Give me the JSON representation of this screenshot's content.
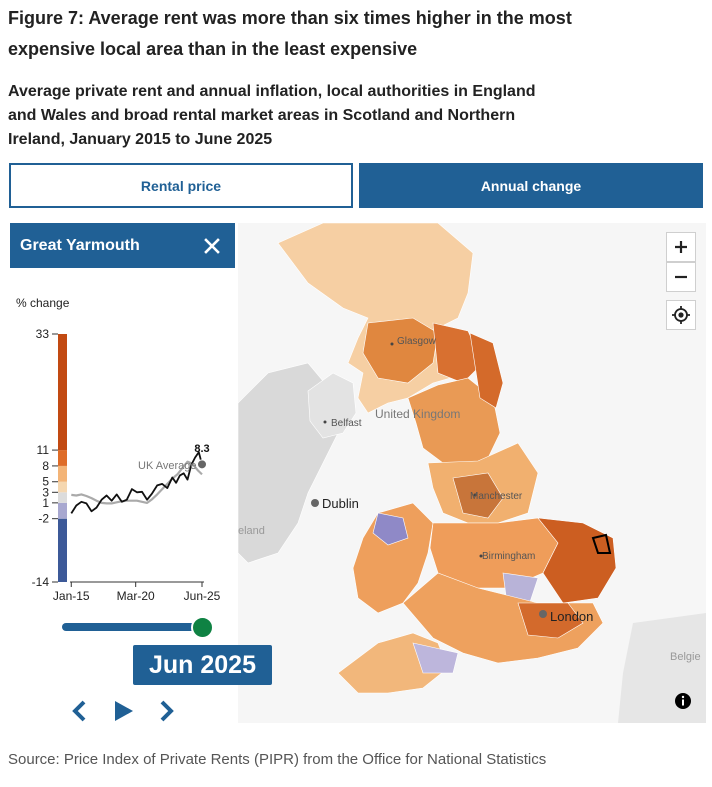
{
  "title": "Figure 7: Average rent was more than six times higher in the most expensive local area than in the least expensive",
  "subtitle": "Average private rent and annual inflation, local authorities in England and Wales and broad rental market areas in Scotland and Northern Ireland, January 2015 to June 2025",
  "tabs": {
    "rental_price": "Rental price",
    "annual_change": "Annual change",
    "active": "annual_change"
  },
  "selected_area": {
    "name": "Great Yarmouth"
  },
  "icons": {
    "close": "close-icon",
    "zoom_in": "plus-icon",
    "zoom_out": "minus-icon",
    "locate": "locate-icon",
    "info": "info-icon",
    "prev": "chevron-left-icon",
    "play": "play-icon",
    "next": "chevron-right-icon"
  },
  "colors": {
    "brand": "#206095",
    "slider_handle": "#0f8243",
    "local_line": "#111111",
    "uk_line": "#aaaaaa",
    "legend_bands": [
      "#3c5998",
      "#a8a8d0",
      "#dcdcdc",
      "#f5d7b0",
      "#f3b477",
      "#de6c28",
      "#c24a12"
    ]
  },
  "chart_data": {
    "type": "line",
    "ylabel": "% change",
    "yticks": [
      33,
      11,
      8,
      5,
      3,
      1,
      -2,
      -14
    ],
    "ylim": [
      -14,
      33
    ],
    "xticks": [
      "Jan-15",
      "Mar-20",
      "Jun-25"
    ],
    "legend_bands": [
      -14,
      -2,
      1,
      3,
      5,
      8,
      11,
      33
    ],
    "series": [
      {
        "name": "Great Yarmouth",
        "x": [
          2015.1,
          2015.5,
          2015.9,
          2016.3,
          2016.7,
          2017.1,
          2017.5,
          2017.9,
          2018.3,
          2018.7,
          2019.1,
          2019.5,
          2019.9,
          2020.3,
          2020.7,
          2021.1,
          2021.5,
          2021.9,
          2022.3,
          2022.7,
          2023.1,
          2023.4,
          2023.7,
          2024.0,
          2024.3,
          2024.6,
          2024.9,
          2025.2,
          2025.45
        ],
        "y": [
          -1.0,
          0.5,
          1.2,
          0.9,
          -0.6,
          0.1,
          1.6,
          2.4,
          1.4,
          2.6,
          1.2,
          1.6,
          3.6,
          3.0,
          3.1,
          1.6,
          2.8,
          4.3,
          4.6,
          3.8,
          5.8,
          4.8,
          6.2,
          6.6,
          5.4,
          8.2,
          9.6,
          10.6,
          8.3
        ]
      },
      {
        "name": "UK Average",
        "x": [
          2015.1,
          2015.5,
          2015.9,
          2016.3,
          2016.7,
          2017.1,
          2017.5,
          2017.9,
          2018.3,
          2018.7,
          2019.1,
          2019.5,
          2019.9,
          2020.3,
          2020.7,
          2021.1,
          2021.5,
          2021.9,
          2022.3,
          2022.7,
          2023.1,
          2023.5,
          2023.9,
          2024.3,
          2024.7,
          2025.1,
          2025.45
        ],
        "y": [
          2.5,
          2.4,
          2.6,
          2.3,
          1.9,
          1.4,
          1.0,
          0.9,
          0.9,
          1.1,
          1.3,
          1.4,
          1.4,
          1.4,
          1.2,
          1.0,
          1.7,
          2.6,
          3.6,
          4.6,
          5.6,
          6.4,
          7.6,
          8.8,
          8.4,
          7.2,
          6.4
        ]
      }
    ],
    "annotations": {
      "latest_value": "8.3",
      "uk_label": "UK Average"
    },
    "current_date": "Jun 2025",
    "slider_progress": 0.95
  },
  "map": {
    "places": {
      "glasgow": "Glasgow",
      "united_kingdom": "United Kingdom",
      "belfast": "Belfast",
      "dublin": "Dublin",
      "ireland": "eland",
      "manchester": "Manchester",
      "birmingham": "Birmingham",
      "london": "London",
      "belgium": "Belgie"
    }
  },
  "source": "Source: Price Index of Private Rents (PIPR) from the Office for National Statistics"
}
